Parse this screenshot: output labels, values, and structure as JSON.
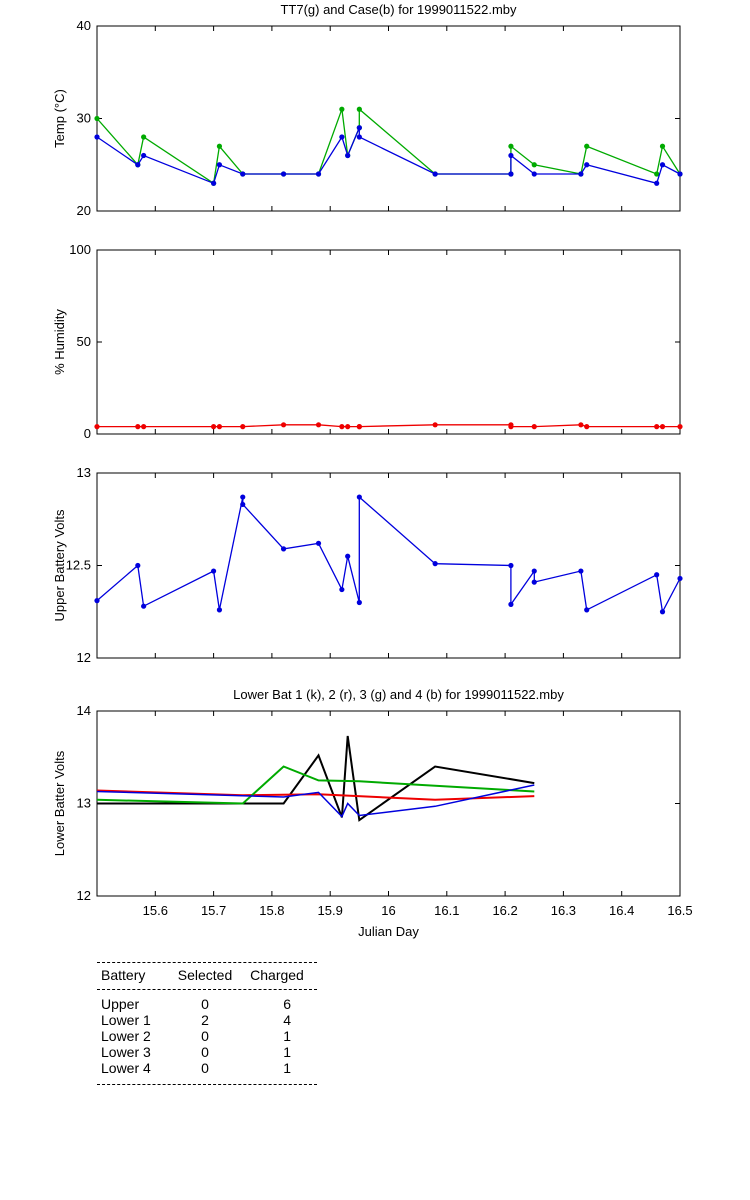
{
  "chart_data": [
    {
      "type": "line",
      "title": "TT7(g) and Case(b) for 1999011522.mby",
      "xlabel": "",
      "ylabel": "Temp  (°C)",
      "xlim": [
        15.5,
        16.5
      ],
      "ylim": [
        20,
        40
      ],
      "yticks": [
        20,
        30,
        40
      ],
      "x": [
        15.5,
        15.57,
        15.58,
        15.7,
        15.71,
        15.75,
        15.82,
        15.88,
        15.92,
        15.93,
        15.95,
        15.95,
        16.08,
        16.21,
        16.21,
        16.25,
        16.33,
        16.34,
        16.46,
        16.47,
        16.5
      ],
      "series": [
        {
          "color": "#00aa00",
          "marker": "*",
          "values": [
            30,
            25,
            28,
            23,
            27,
            24,
            24,
            24,
            31,
            26,
            29,
            31,
            24,
            24,
            27,
            25,
            24,
            27,
            24,
            27,
            24
          ]
        },
        {
          "color": "#0000dd",
          "marker": "*",
          "values": [
            28,
            25,
            26,
            23,
            25,
            24,
            24,
            24,
            28,
            26,
            29,
            28,
            24,
            24,
            26,
            24,
            24,
            25,
            23,
            25,
            24
          ]
        }
      ]
    },
    {
      "type": "line",
      "title": "",
      "ylabel": "% Humidity",
      "xlim": [
        15.5,
        16.5
      ],
      "ylim": [
        0,
        100
      ],
      "yticks": [
        0,
        50,
        100
      ],
      "x": [
        15.5,
        15.57,
        15.58,
        15.7,
        15.71,
        15.75,
        15.82,
        15.88,
        15.92,
        15.93,
        15.95,
        15.95,
        16.08,
        16.21,
        16.21,
        16.25,
        16.33,
        16.34,
        16.46,
        16.47,
        16.5
      ],
      "series": [
        {
          "color": "#ee0000",
          "marker": "*",
          "values": [
            4,
            4,
            4,
            4,
            4,
            4,
            5,
            5,
            4,
            4,
            4,
            4,
            5,
            5,
            4,
            4,
            5,
            4,
            4,
            4,
            4
          ]
        }
      ]
    },
    {
      "type": "line",
      "title": "",
      "ylabel": "Upper Battery Volts",
      "xlim": [
        15.5,
        16.5
      ],
      "ylim": [
        12,
        13
      ],
      "yticks": [
        12,
        12.5,
        13
      ],
      "x": [
        15.5,
        15.57,
        15.58,
        15.7,
        15.71,
        15.75,
        15.75,
        15.82,
        15.88,
        15.92,
        15.93,
        15.95,
        15.95,
        16.08,
        16.21,
        16.21,
        16.25,
        16.25,
        16.33,
        16.34,
        16.46,
        16.47,
        16.5
      ],
      "series": [
        {
          "color": "#0000dd",
          "marker": "*",
          "values": [
            12.31,
            12.5,
            12.28,
            12.47,
            12.26,
            12.87,
            12.83,
            12.59,
            12.62,
            12.37,
            12.55,
            12.3,
            12.87,
            12.51,
            12.5,
            12.29,
            12.47,
            12.41,
            12.47,
            12.26,
            12.45,
            12.25,
            12.43
          ]
        }
      ]
    },
    {
      "type": "line",
      "title": "Lower Bat 1 (k), 2 (r), 3 (g) and 4 (b) for 1999011522.mby",
      "xlabel": "Julian Day",
      "ylabel": "Lower Batter Volts",
      "xlim": [
        15.5,
        16.5
      ],
      "ylim": [
        12,
        14
      ],
      "yticks": [
        12,
        13,
        14
      ],
      "xticks": [
        15.6,
        15.7,
        15.8,
        15.9,
        16,
        16.1,
        16.2,
        16.3,
        16.4,
        16.5
      ],
      "series": [
        {
          "color": "#000000",
          "width": 2,
          "x": [
            15.5,
            15.82,
            15.88,
            15.92,
            15.93,
            15.95,
            16.08,
            16.25
          ],
          "values": [
            13,
            13,
            13.52,
            12.85,
            13.73,
            12.82,
            13.4,
            13.22
          ]
        },
        {
          "color": "#ee0000",
          "width": 2,
          "x": [
            15.5,
            15.75,
            15.88,
            16.08,
            16.25
          ],
          "values": [
            13.14,
            13.09,
            13.1,
            13.04,
            13.08
          ]
        },
        {
          "color": "#00aa00",
          "width": 2,
          "x": [
            15.5,
            15.75,
            15.82,
            15.88,
            15.95,
            16.25
          ],
          "values": [
            13.04,
            13,
            13.4,
            13.25,
            13.24,
            13.13
          ]
        },
        {
          "color": "#0000dd",
          "width": 1.5,
          "x": [
            15.5,
            15.82,
            15.88,
            15.92,
            15.93,
            15.95,
            16.08,
            16.25
          ],
          "values": [
            13.13,
            13.07,
            13.12,
            12.86,
            13,
            12.87,
            12.97,
            13.2
          ]
        }
      ]
    }
  ],
  "table": {
    "headers": [
      "Battery",
      "Selected",
      "Charged"
    ],
    "rows": [
      {
        "battery": "Upper",
        "selected": "0",
        "charged": "6"
      },
      {
        "battery": "Lower 1",
        "selected": "2",
        "charged": "4"
      },
      {
        "battery": "Lower 2",
        "selected": "0",
        "charged": "1"
      },
      {
        "battery": "Lower 3",
        "selected": "0",
        "charged": "1"
      },
      {
        "battery": "Lower 4",
        "selected": "0",
        "charged": "1"
      }
    ]
  }
}
